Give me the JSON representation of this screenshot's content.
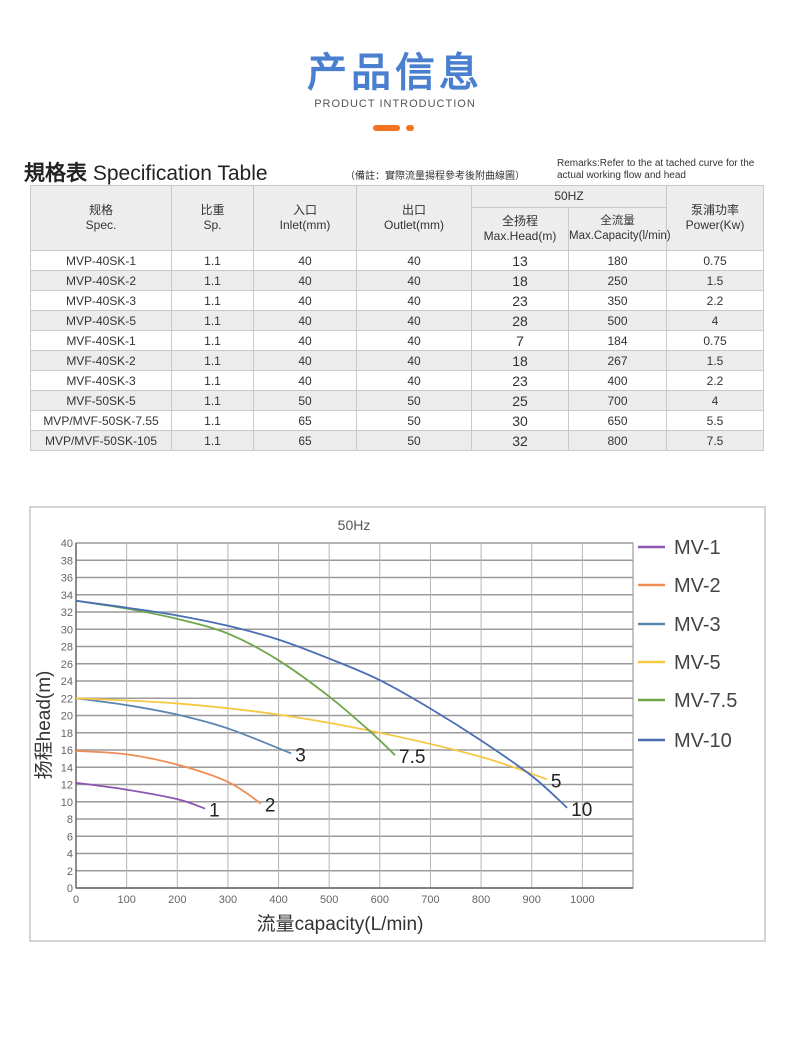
{
  "header": {
    "title": "产品信息",
    "subtitle": "PRODUCT INTRODUCTION"
  },
  "colors": {
    "accent": "#4a7fcf",
    "orange": "#f37321"
  },
  "spec": {
    "title_cn": "規格表",
    "title_en": "Specification Table",
    "note": "（備註：實際流量揚程參考後附曲線圖）",
    "remarks": "Remarks:Refer to the at tached curve for the actual working flow and head",
    "group_header": "50HZ",
    "columns": [
      {
        "cn": "规格",
        "en": "Spec."
      },
      {
        "cn": "比重",
        "en": "Sp."
      },
      {
        "cn": "入口",
        "en": "Inlet(mm)"
      },
      {
        "cn": "出口",
        "en": "Outlet(mm)"
      },
      {
        "cn": "全扬程",
        "en": "Max.Head(m)"
      },
      {
        "cn": "全流量",
        "en": "Max.Capacity(l/min)"
      },
      {
        "cn": "泵浦功率",
        "en": "Power(Kw)"
      }
    ],
    "rows": [
      [
        "MVP-40SK-1",
        "1.1",
        "40",
        "40",
        "13",
        "180",
        "0.75"
      ],
      [
        "MVP-40SK-2",
        "1.1",
        "40",
        "40",
        "18",
        "250",
        "1.5"
      ],
      [
        "MVP-40SK-3",
        "1.1",
        "40",
        "40",
        "23",
        "350",
        "2.2"
      ],
      [
        "MVP-40SK-5",
        "1.1",
        "40",
        "40",
        "28",
        "500",
        "4"
      ],
      [
        "MVF-40SK-1",
        "1.1",
        "40",
        "40",
        "7",
        "184",
        "0.75"
      ],
      [
        "MVF-40SK-2",
        "1.1",
        "40",
        "40",
        "18",
        "267",
        "1.5"
      ],
      [
        "MVF-40SK-3",
        "1.1",
        "40",
        "40",
        "23",
        "400",
        "2.2"
      ],
      [
        "MVF-50SK-5",
        "1.1",
        "50",
        "50",
        "25",
        "700",
        "4"
      ],
      [
        "MVP/MVF-50SK-7.55",
        "1.1",
        "65",
        "50",
        "30",
        "650",
        "5.5"
      ],
      [
        "MVP/MVF-50SK-105",
        "1.1",
        "65",
        "50",
        "32",
        "800",
        "7.5"
      ]
    ]
  },
  "chart_data": {
    "type": "line",
    "title": "50Hz",
    "xlabel": "流量capacity(L/min)",
    "ylabel": "扬程head(m)",
    "xlim": [
      0,
      1100
    ],
    "ylim": [
      0,
      40
    ],
    "grid": true,
    "legend": "right",
    "xticks": [
      0,
      100,
      200,
      300,
      400,
      500,
      600,
      700,
      800,
      900,
      1000
    ],
    "yticks": [
      0,
      2,
      4,
      6,
      8,
      10,
      12,
      14,
      16,
      18,
      20,
      22,
      24,
      26,
      28,
      30,
      32,
      34,
      36,
      38,
      40
    ],
    "series": [
      {
        "name": "MV-1",
        "end_label": "1",
        "color": "#8a56b0",
        "x": [
          0,
          100,
          200,
          255
        ],
        "y": [
          12.2,
          11.4,
          10.3,
          9.2
        ]
      },
      {
        "name": "MV-2",
        "end_label": "2",
        "color": "#ef8d57",
        "x": [
          0,
          100,
          200,
          300,
          365
        ],
        "y": [
          15.9,
          15.5,
          14.3,
          12.3,
          9.8
        ]
      },
      {
        "name": "MV-3",
        "end_label": "3",
        "color": "#5b86b0",
        "x": [
          0,
          100,
          200,
          300,
          425
        ],
        "y": [
          22,
          21.2,
          20.1,
          18.5,
          15.6
        ]
      },
      {
        "name": "MV-5",
        "end_label": "5",
        "color": "#f5c842",
        "x": [
          0,
          200,
          400,
          600,
          800,
          930
        ],
        "y": [
          22,
          21.4,
          20.1,
          18,
          15.2,
          12.6
        ]
      },
      {
        "name": "MV-7.5",
        "end_label": "7.5",
        "color": "#6fa64a",
        "x": [
          0,
          100,
          200,
          300,
          400,
          500,
          580,
          630
        ],
        "y": [
          33.3,
          32.4,
          31.2,
          29.5,
          26.4,
          22.2,
          18.2,
          15.4
        ]
      },
      {
        "name": "MV-10",
        "end_label": "10",
        "color": "#4a6fb5",
        "x": [
          0,
          100,
          200,
          300,
          400,
          500,
          600,
          700,
          800,
          900,
          970
        ],
        "y": [
          33.3,
          32.5,
          31.6,
          30.4,
          28.8,
          26.6,
          24.1,
          20.8,
          17.1,
          13,
          9.3
        ]
      }
    ]
  }
}
